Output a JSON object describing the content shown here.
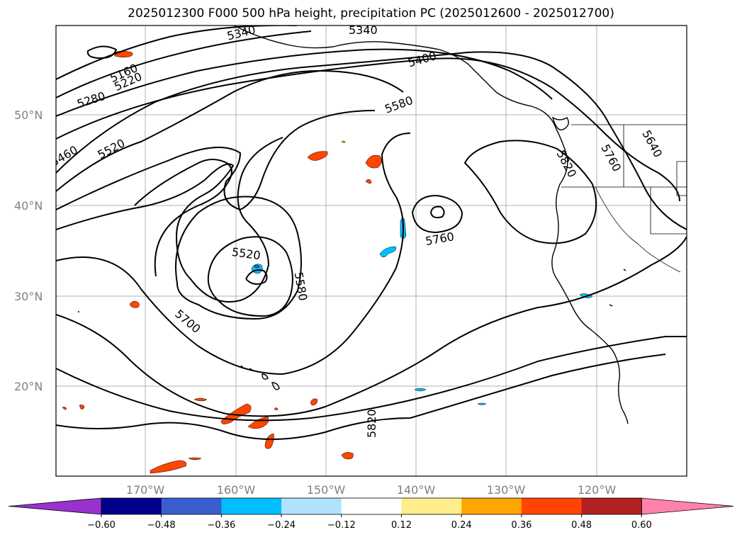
{
  "title": "2025012300 F000 500 hPa height, precipitation PC (2025012600 - 2025012700)",
  "lat_labels": [
    "50°N",
    "40°N",
    "30°N",
    "20°N"
  ],
  "lon_labels": [
    "170°W",
    "160°W",
    "150°W",
    "140°W",
    "130°W",
    "120°W"
  ],
  "contour_labels": [
    "5340",
    "5340",
    "5400",
    "5160",
    "5220",
    "5280",
    "5580",
    "5460",
    "5520",
    "5520",
    "5580",
    "5700",
    "5760",
    "5820",
    "5760",
    "5640",
    "5820"
  ],
  "colorbar": {
    "tick_labels": [
      "−0.60",
      "−0.48",
      "−0.36",
      "−0.24",
      "−0.12",
      "0.12",
      "0.24",
      "0.36",
      "0.48",
      "0.60"
    ],
    "colors": [
      "#9932cc",
      "#00008b",
      "#3a5fcd",
      "#00bfff",
      "#b0e2ff",
      "#ffffff",
      "#ffec8b",
      "#ffa500",
      "#ff4500",
      "#b22222",
      "#ff82ab"
    ]
  }
}
